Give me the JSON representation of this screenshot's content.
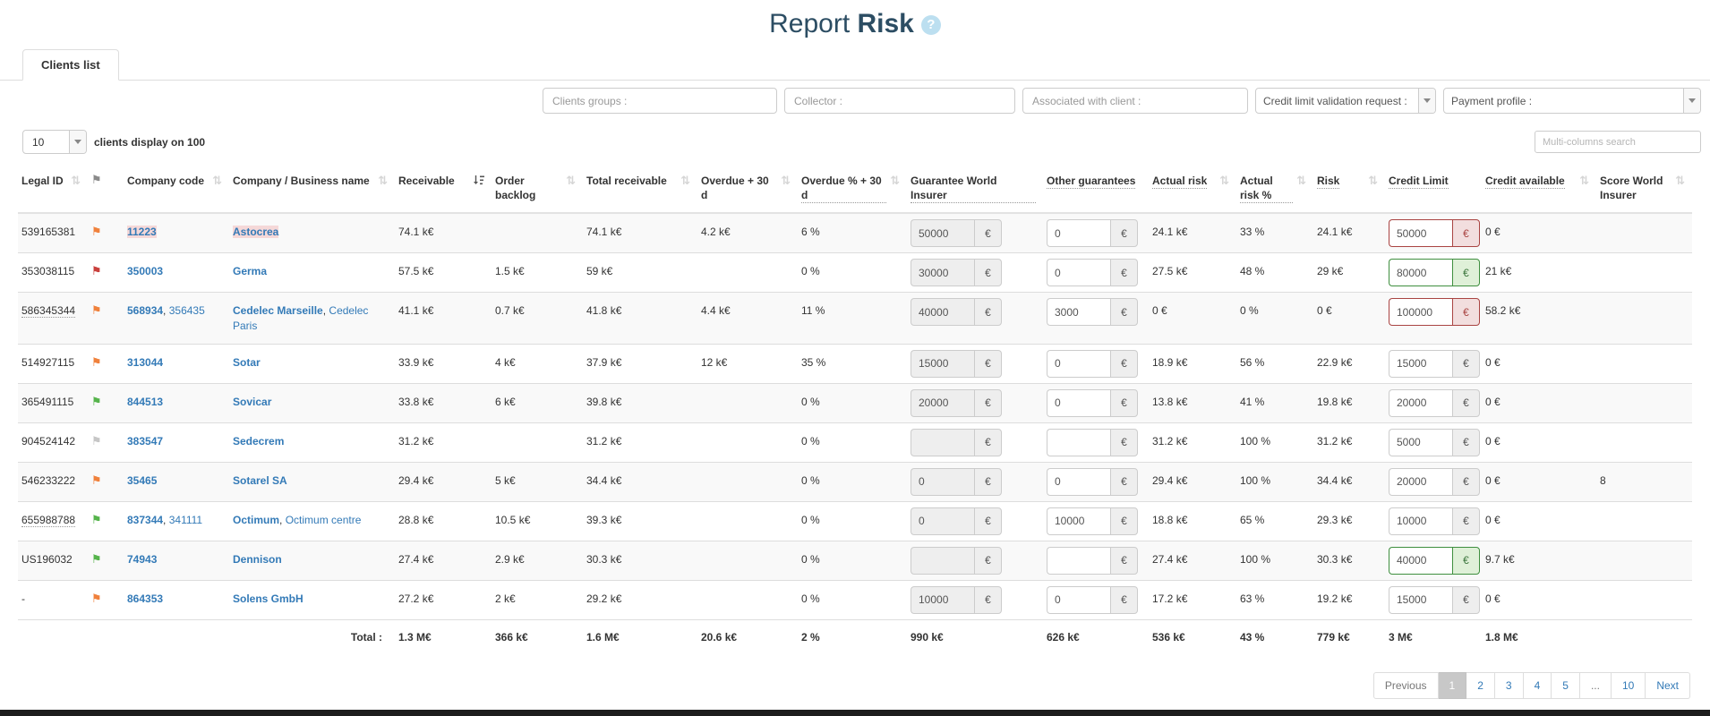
{
  "title": {
    "normal": "Report",
    "bold": "Risk",
    "help": "?"
  },
  "tab": {
    "label": "Clients list"
  },
  "filters": {
    "clients_groups": "Clients groups :",
    "collector": "Collector :",
    "associated": "Associated with client :",
    "credit_limit_request": "Credit limit validation request :",
    "payment_profile": "Payment profile :"
  },
  "display_control": {
    "selected": "10",
    "label": "clients display on 100"
  },
  "search": {
    "placeholder": "Multi-columns search"
  },
  "colors": {
    "title": "#2c4d63",
    "link": "#337ab7",
    "flag_orange": "#f0813c",
    "flag_red": "#c9403c",
    "flag_green": "#56b44c",
    "flag_gray": "#c6c6c6",
    "danger": "#a94442",
    "success": "#3c763d",
    "highlight": "#f5d8d8"
  },
  "table": {
    "columns": [
      {
        "id": "legal-id",
        "label": "Legal ID",
        "sort": "inactive",
        "dotted": false
      },
      {
        "id": "flag",
        "label": "",
        "flag": true,
        "sort": "none",
        "dotted": false
      },
      {
        "id": "company-code",
        "label": "Company code",
        "sort": "inactive",
        "dotted": false
      },
      {
        "id": "company-name",
        "label": "Company / Business name",
        "sort": "inactive",
        "dotted": false
      },
      {
        "id": "receivable",
        "label": "Receivable",
        "sort": "active",
        "dotted": false
      },
      {
        "id": "order-backlog",
        "label": "Order backlog",
        "sort": "inactive",
        "dotted": false
      },
      {
        "id": "total-receivable",
        "label": "Total receivable",
        "sort": "inactive",
        "dotted": false
      },
      {
        "id": "overdue-30d",
        "label": "Overdue + 30 d",
        "sort": "inactive",
        "dotted": false
      },
      {
        "id": "overdue-pct-30d",
        "label": "Overdue % + 30 d",
        "sort": "inactive",
        "dotted": true
      },
      {
        "id": "guarantee-world-insurer",
        "label": "Guarantee World Insurer",
        "sort": "none",
        "dotted": true
      },
      {
        "id": "other-guarantees",
        "label": "Other guarantees",
        "sort": "none",
        "dotted": true
      },
      {
        "id": "actual-risk",
        "label": "Actual risk",
        "sort": "inactive",
        "dotted": true
      },
      {
        "id": "actual-risk-pct",
        "label": "Actual risk %",
        "sort": "inactive",
        "dotted": true
      },
      {
        "id": "risk",
        "label": "Risk",
        "sort": "inactive",
        "dotted": true
      },
      {
        "id": "credit-limit",
        "label": "Credit Limit",
        "sort": "none",
        "dotted": true
      },
      {
        "id": "credit-available",
        "label": "Credit available",
        "sort": "inactive",
        "dotted": true
      },
      {
        "id": "score-world-insurer",
        "label": "Score World Insurer",
        "sort": "inactive",
        "dotted": false
      }
    ],
    "euro_addon": "€",
    "rows": [
      {
        "legal_id": "539165381",
        "legal_dotted": false,
        "flag": "orange",
        "code_primary": "11223",
        "code_secondary": "",
        "name_primary": "Astocrea",
        "name_secondary": "",
        "highlight": true,
        "receivable": "74.1 k€",
        "order_backlog": "",
        "total_receivable": "74.1 k€",
        "overdue30": "4.2 k€",
        "overdue_pct": "6 %",
        "guarantee": "50000",
        "other": "0",
        "actual_risk": "24.1 k€",
        "actual_risk_pct": "33 %",
        "risk": "24.1 k€",
        "credit_limit": "50000",
        "limit_state": "danger",
        "credit_available": "0 €",
        "score": ""
      },
      {
        "legal_id": "353038115",
        "legal_dotted": false,
        "flag": "red",
        "code_primary": "350003",
        "code_secondary": "",
        "name_primary": "Germa",
        "name_secondary": "",
        "highlight": false,
        "receivable": "57.5 k€",
        "order_backlog": "1.5 k€",
        "total_receivable": "59 k€",
        "overdue30": "",
        "overdue_pct": "0 %",
        "guarantee": "30000",
        "other": "0",
        "actual_risk": "27.5 k€",
        "actual_risk_pct": "48 %",
        "risk": "29 k€",
        "credit_limit": "80000",
        "limit_state": "success",
        "credit_available": "21 k€",
        "score": ""
      },
      {
        "legal_id": "586345344",
        "legal_dotted": true,
        "flag": "orange",
        "code_primary": "568934",
        "code_secondary": "356435",
        "name_primary": "Cedelec Marseille",
        "name_secondary": "Cedelec Paris",
        "highlight": false,
        "receivable": "41.1 k€",
        "order_backlog": "0.7 k€",
        "total_receivable": "41.8 k€",
        "overdue30": "4.4 k€",
        "overdue_pct": "11 %",
        "guarantee": "40000",
        "other": "3000",
        "actual_risk": "0 €",
        "actual_risk_pct": "0 %",
        "risk": "0 €",
        "credit_limit": "100000",
        "limit_state": "danger",
        "credit_available": "58.2 k€",
        "score": ""
      },
      {
        "legal_id": "514927115",
        "legal_dotted": false,
        "flag": "orange",
        "code_primary": "313044",
        "code_secondary": "",
        "name_primary": "Sotar",
        "name_secondary": "",
        "highlight": false,
        "receivable": "33.9 k€",
        "order_backlog": "4 k€",
        "total_receivable": "37.9 k€",
        "overdue30": "12 k€",
        "overdue_pct": "35 %",
        "guarantee": "15000",
        "other": "0",
        "actual_risk": "18.9 k€",
        "actual_risk_pct": "56 %",
        "risk": "22.9 k€",
        "credit_limit": "15000",
        "limit_state": "normal",
        "credit_available": "0 €",
        "score": ""
      },
      {
        "legal_id": "365491115",
        "legal_dotted": false,
        "flag": "green",
        "code_primary": "844513",
        "code_secondary": "",
        "name_primary": "Sovicar",
        "name_secondary": "",
        "highlight": false,
        "receivable": "33.8 k€",
        "order_backlog": "6 k€",
        "total_receivable": "39.8 k€",
        "overdue30": "",
        "overdue_pct": "0 %",
        "guarantee": "20000",
        "other": "0",
        "actual_risk": "13.8 k€",
        "actual_risk_pct": "41 %",
        "risk": "19.8 k€",
        "credit_limit": "20000",
        "limit_state": "normal",
        "credit_available": "0 €",
        "score": ""
      },
      {
        "legal_id": "904524142",
        "legal_dotted": false,
        "flag": "gray",
        "code_primary": "383547",
        "code_secondary": "",
        "name_primary": "Sedecrem",
        "name_secondary": "",
        "highlight": false,
        "receivable": "31.2 k€",
        "order_backlog": "",
        "total_receivable": "31.2 k€",
        "overdue30": "",
        "overdue_pct": "0 %",
        "guarantee": "",
        "other": "",
        "actual_risk": "31.2 k€",
        "actual_risk_pct": "100 %",
        "risk": "31.2 k€",
        "credit_limit": "5000",
        "limit_state": "normal",
        "credit_available": "0 €",
        "score": ""
      },
      {
        "legal_id": "546233222",
        "legal_dotted": false,
        "flag": "orange",
        "code_primary": "35465",
        "code_secondary": "",
        "name_primary": "Sotarel SA",
        "name_secondary": "",
        "highlight": false,
        "receivable": "29.4 k€",
        "order_backlog": "5 k€",
        "total_receivable": "34.4 k€",
        "overdue30": "",
        "overdue_pct": "0 %",
        "guarantee": "0",
        "other": "0",
        "actual_risk": "29.4 k€",
        "actual_risk_pct": "100 %",
        "risk": "34.4 k€",
        "credit_limit": "20000",
        "limit_state": "normal",
        "credit_available": "0 €",
        "score": "8"
      },
      {
        "legal_id": "655988788",
        "legal_dotted": true,
        "flag": "green",
        "code_primary": "837344",
        "code_secondary": "341111",
        "name_primary": "Octimum",
        "name_secondary": "Octimum centre",
        "highlight": false,
        "receivable": "28.8 k€",
        "order_backlog": "10.5 k€",
        "total_receivable": "39.3 k€",
        "overdue30": "",
        "overdue_pct": "0 %",
        "guarantee": "0",
        "other": "10000",
        "actual_risk": "18.8 k€",
        "actual_risk_pct": "65 %",
        "risk": "29.3 k€",
        "credit_limit": "10000",
        "limit_state": "normal",
        "credit_available": "0 €",
        "score": ""
      },
      {
        "legal_id": "US196032",
        "legal_dotted": false,
        "flag": "green",
        "code_primary": "74943",
        "code_secondary": "",
        "name_primary": "Dennison",
        "name_secondary": "",
        "highlight": false,
        "receivable": "27.4 k€",
        "order_backlog": "2.9 k€",
        "total_receivable": "30.3 k€",
        "overdue30": "",
        "overdue_pct": "0 %",
        "guarantee": "",
        "other": "",
        "actual_risk": "27.4 k€",
        "actual_risk_pct": "100 %",
        "risk": "30.3 k€",
        "credit_limit": "40000",
        "limit_state": "success",
        "credit_available": "9.7 k€",
        "score": ""
      },
      {
        "legal_id": "-",
        "legal_dotted": false,
        "flag": "orange",
        "code_primary": "864353",
        "code_secondary": "",
        "name_primary": "Solens GmbH",
        "name_secondary": "",
        "highlight": false,
        "receivable": "27.2 k€",
        "order_backlog": "2 k€",
        "total_receivable": "29.2 k€",
        "overdue30": "",
        "overdue_pct": "0 %",
        "guarantee": "10000",
        "other": "0",
        "actual_risk": "17.2 k€",
        "actual_risk_pct": "63 %",
        "risk": "19.2 k€",
        "credit_limit": "15000",
        "limit_state": "normal",
        "credit_available": "0 €",
        "score": ""
      }
    ],
    "total": {
      "label": "Total :",
      "receivable": "1.3 M€",
      "order_backlog": "366 k€",
      "total_receivable": "1.6 M€",
      "overdue30": "20.6 k€",
      "overdue_pct": "2 %",
      "guarantee": "990 k€",
      "other": "626 k€",
      "actual_risk": "536 k€",
      "actual_risk_pct": "43 %",
      "risk": "779 k€",
      "credit_limit": "3 M€",
      "credit_available": "1.8 M€",
      "score": ""
    }
  },
  "pagination": {
    "items": [
      {
        "label": "Previous",
        "type": "prev"
      },
      {
        "label": "1",
        "active": true
      },
      {
        "label": "2"
      },
      {
        "label": "3"
      },
      {
        "label": "4"
      },
      {
        "label": "5"
      },
      {
        "label": "...",
        "ellipsis": true
      },
      {
        "label": "10"
      },
      {
        "label": "Next",
        "type": "next"
      }
    ]
  }
}
